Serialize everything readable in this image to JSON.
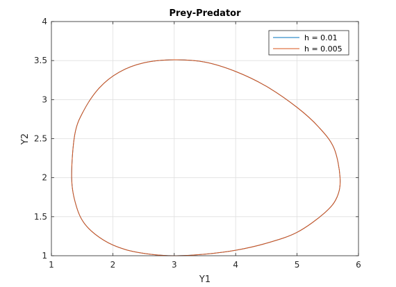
{
  "chart_data": {
    "type": "line",
    "title": "Prey-Predator",
    "xlabel": "Y1",
    "ylabel": "Y2",
    "xlim": [
      1,
      6
    ],
    "ylim": [
      1,
      4
    ],
    "xticks": [
      "1",
      "2",
      "3",
      "4",
      "5",
      "6"
    ],
    "yticks": [
      "1",
      "1.5",
      "2",
      "2.5",
      "3",
      "3.5",
      "4"
    ],
    "grid": true,
    "legend_position": "top-right",
    "series": [
      {
        "name": "h = 0.01",
        "color": "#0072bd",
        "x": [
          1.33,
          1.38,
          1.52,
          1.78,
          2.1,
          2.5,
          3.0,
          3.5,
          4.0,
          4.5,
          5.0,
          5.35,
          5.6,
          5.7,
          5.65,
          5.45,
          5.0,
          4.5,
          4.0,
          3.5,
          3.0,
          2.6,
          2.2,
          1.85,
          1.55,
          1.4,
          1.33
        ],
        "y": [
          2.0,
          2.55,
          2.85,
          3.15,
          3.35,
          3.47,
          3.51,
          3.48,
          3.36,
          3.17,
          2.9,
          2.65,
          2.38,
          2.0,
          1.75,
          1.55,
          1.3,
          1.16,
          1.07,
          1.02,
          1.0,
          1.02,
          1.08,
          1.2,
          1.4,
          1.65,
          2.0
        ]
      },
      {
        "name": "h = 0.005",
        "color": "#d95319",
        "x": [
          1.33,
          1.38,
          1.52,
          1.78,
          2.1,
          2.5,
          3.0,
          3.5,
          4.0,
          4.5,
          5.0,
          5.35,
          5.6,
          5.7,
          5.65,
          5.45,
          5.0,
          4.5,
          4.0,
          3.5,
          3.0,
          2.6,
          2.2,
          1.85,
          1.55,
          1.4,
          1.33
        ],
        "y": [
          2.0,
          2.55,
          2.85,
          3.15,
          3.35,
          3.47,
          3.51,
          3.48,
          3.36,
          3.17,
          2.9,
          2.65,
          2.38,
          2.0,
          1.75,
          1.55,
          1.3,
          1.16,
          1.07,
          1.02,
          1.0,
          1.02,
          1.08,
          1.2,
          1.4,
          1.65,
          2.0
        ]
      }
    ]
  }
}
